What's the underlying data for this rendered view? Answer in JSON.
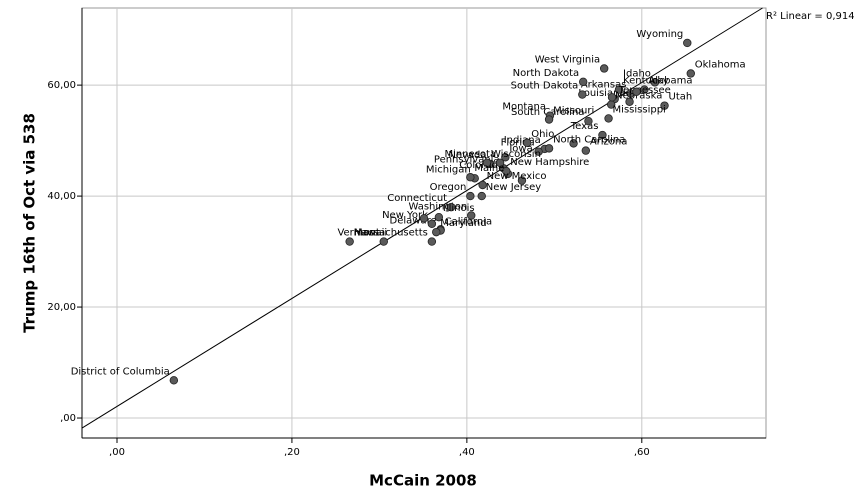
{
  "chart_data": {
    "type": "scatter",
    "x_label": "McCain 2008",
    "y_label": "Trump 16th of Oct via 538",
    "annotation": "R² Linear = 0,914",
    "fit": {
      "slope": 97.3,
      "intercept": 2.09
    },
    "categories": [
      "Wyoming",
      "Oklahoma",
      "Idaho",
      "Alabama",
      "Arkansas",
      "Utah",
      "Louisiana",
      "Kentucky",
      "West Virginia",
      "Tennessee",
      "North Dakota",
      "Nebraska",
      "South Dakota",
      null,
      "Texas",
      "Mississippi",
      "South Carolina",
      null,
      null,
      "Arizona",
      "Montana",
      "Missouri",
      "Indiana",
      "North Carolina",
      "Florida",
      "Ohio",
      "Nevada",
      "Iowa",
      "Pennsylvania",
      null,
      "Colorado",
      "New Hampshire",
      "Minnesota",
      "Wisconsin",
      "Michigan",
      "New Mexico",
      "Oregon",
      "Maine",
      "Washington",
      "New Jersey",
      "Connecticut",
      "Illinois",
      "Delaware",
      "California",
      "New York",
      "Maryland",
      "Massachusetts",
      null,
      "Vermont",
      "Hawaii",
      "District of Columbia"
    ],
    "x": [
      0.652,
      0.656,
      0.615,
      0.603,
      0.587,
      0.626,
      0.586,
      0.574,
      0.557,
      0.569,
      0.533,
      0.565,
      0.532,
      0.566,
      0.555,
      0.562,
      0.539,
      0.522,
      0.594,
      0.536,
      0.495,
      0.494,
      0.489,
      0.494,
      0.482,
      0.469,
      0.427,
      0.444,
      0.442,
      0.463,
      0.447,
      0.445,
      0.438,
      0.423,
      0.409,
      0.418,
      0.404,
      0.404,
      0.405,
      0.417,
      0.382,
      0.368,
      0.37,
      0.37,
      0.36,
      0.365,
      0.36,
      0.351,
      0.305,
      0.266,
      0.065
    ],
    "values": [
      67.6,
      62.1,
      60.5,
      59.2,
      58.5,
      56.3,
      57.0,
      59.2,
      63.0,
      57.5,
      60.6,
      56.5,
      58.3,
      57.8,
      51.0,
      54.0,
      53.5,
      49.5,
      58.8,
      48.2,
      54.5,
      53.8,
      48.5,
      48.6,
      48.0,
      49.6,
      45.8,
      47.0,
      45.0,
      42.8,
      44.0,
      44.5,
      46.0,
      46.0,
      43.2,
      42.0,
      40.0,
      43.4,
      36.5,
      40.0,
      38.0,
      36.2,
      34.0,
      33.8,
      35.0,
      33.5,
      31.8,
      36.0,
      31.8,
      31.8,
      6.8
    ],
    "color": "#5a5a5a",
    "xlim": [
      -0.04,
      0.742
    ],
    "ylim": [
      -3.6,
      73.9
    ],
    "xticks": [
      {
        "value": 0,
        "label": ",00"
      },
      {
        "value": 0.2,
        "label": ",20"
      },
      {
        "value": 0.4,
        "label": ",40"
      },
      {
        "value": 0.6,
        "label": ",60"
      }
    ],
    "yticks": [
      {
        "value": 0,
        "label": ",00"
      },
      {
        "value": 20,
        "label": "20,00"
      },
      {
        "value": 40,
        "label": "40,00"
      },
      {
        "value": 60,
        "label": "60,00"
      }
    ],
    "grid": true
  }
}
